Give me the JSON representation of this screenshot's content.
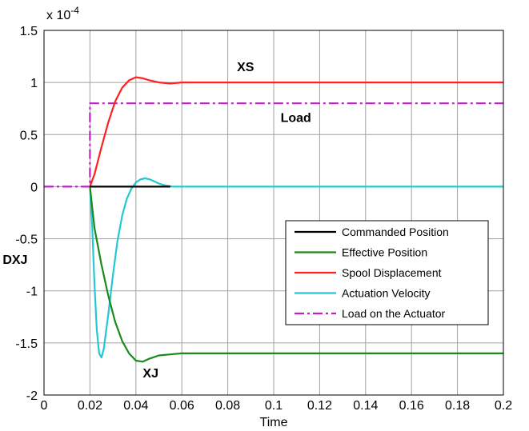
{
  "chart_data": {
    "type": "line",
    "title": "",
    "xlabel": "Time",
    "ylabel": "",
    "multiplier_label": "x 10",
    "multiplier_exponent": "-4",
    "xlim": [
      0,
      0.2
    ],
    "ylim": [
      -2,
      1.5
    ],
    "grid": true,
    "legend_position": "lower-right",
    "x_ticks": [
      {
        "v": 0,
        "label": "0"
      },
      {
        "v": 0.02,
        "label": "0.02"
      },
      {
        "v": 0.04,
        "label": "0.04"
      },
      {
        "v": 0.06,
        "label": "0.06"
      },
      {
        "v": 0.08,
        "label": "0.08"
      },
      {
        "v": 0.1,
        "label": "0.1"
      },
      {
        "v": 0.12,
        "label": "0.12"
      },
      {
        "v": 0.14,
        "label": "0.14"
      },
      {
        "v": 0.16,
        "label": "0.16"
      },
      {
        "v": 0.18,
        "label": "0.18"
      },
      {
        "v": 0.2,
        "label": "0.2"
      }
    ],
    "y_ticks": [
      {
        "v": 1.5,
        "label": "1.5"
      },
      {
        "v": 1,
        "label": "1"
      },
      {
        "v": 0.5,
        "label": "0.5"
      },
      {
        "v": 0,
        "label": "0"
      },
      {
        "v": -0.5,
        "label": "-0.5"
      },
      {
        "v": -1,
        "label": "-1"
      },
      {
        "v": -1.5,
        "label": "-1.5"
      },
      {
        "v": -2,
        "label": "-2"
      }
    ],
    "series": [
      {
        "name": "Commanded Position",
        "color": "#000000",
        "dash": "solid",
        "x": [
          0.02,
          0.055
        ],
        "y": [
          0,
          0
        ]
      },
      {
        "name": "Effective Position",
        "color": "#1a8a1a",
        "dash": "solid",
        "x": [
          0.02,
          0.022,
          0.025,
          0.028,
          0.031,
          0.034,
          0.037,
          0.04,
          0.043,
          0.046,
          0.05,
          0.055,
          0.06,
          0.08,
          0.1,
          0.12,
          0.14,
          0.16,
          0.18,
          0.2
        ],
        "y": [
          0,
          -0.4,
          -0.75,
          -1.05,
          -1.3,
          -1.48,
          -1.6,
          -1.67,
          -1.68,
          -1.65,
          -1.62,
          -1.61,
          -1.6,
          -1.6,
          -1.6,
          -1.6,
          -1.6,
          -1.6,
          -1.6,
          -1.6
        ]
      },
      {
        "name": "Spool Displacement",
        "color": "#ff2020",
        "dash": "solid",
        "x": [
          0.02,
          0.022,
          0.025,
          0.028,
          0.031,
          0.034,
          0.037,
          0.04,
          0.043,
          0.046,
          0.05,
          0.055,
          0.06,
          0.08,
          0.1,
          0.12,
          0.14,
          0.16,
          0.18,
          0.2
        ],
        "y": [
          0,
          0.12,
          0.38,
          0.62,
          0.82,
          0.95,
          1.02,
          1.05,
          1.04,
          1.02,
          1.0,
          0.99,
          1.0,
          1.0,
          1.0,
          1.0,
          1.0,
          1.0,
          1.0,
          1.0
        ]
      },
      {
        "name": "Actuation Velocity",
        "color": "#22c8d4",
        "dash": "solid",
        "x": [
          0.02,
          0.021,
          0.022,
          0.023,
          0.024,
          0.025,
          0.026,
          0.028,
          0.03,
          0.032,
          0.034,
          0.036,
          0.038,
          0.04,
          0.042,
          0.044,
          0.046,
          0.048,
          0.05,
          0.053,
          0.056,
          0.06,
          0.08,
          0.1,
          0.12,
          0.14,
          0.16,
          0.18,
          0.2
        ],
        "y": [
          0,
          -0.4,
          -0.95,
          -1.38,
          -1.6,
          -1.64,
          -1.56,
          -1.22,
          -0.85,
          -0.52,
          -0.28,
          -0.12,
          -0.02,
          0.04,
          0.07,
          0.08,
          0.07,
          0.05,
          0.03,
          0.01,
          0.0,
          0.0,
          0.0,
          0.0,
          0.0,
          0.0,
          0.0,
          0.0,
          0.0
        ]
      },
      {
        "name": "Load on the Actuator",
        "color": "#c020c8",
        "dash": "dashdot",
        "x": [
          0,
          0.02,
          0.02,
          0.2
        ],
        "y": [
          0,
          0,
          0.8,
          0.8
        ]
      }
    ],
    "annotations": [
      {
        "text": "XS",
        "x": 0.084,
        "y": 1.11
      },
      {
        "text": "Load",
        "x": 0.103,
        "y": 0.62
      },
      {
        "text": "DXJ",
        "x": -0.018,
        "y": -0.74
      },
      {
        "text": "XJ",
        "x": 0.043,
        "y": -1.83
      }
    ]
  }
}
